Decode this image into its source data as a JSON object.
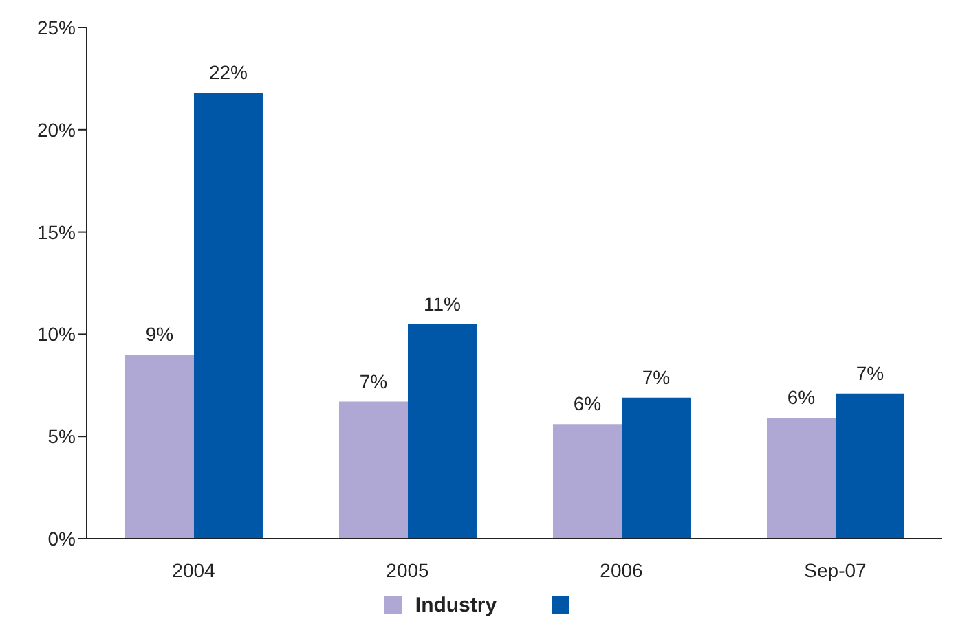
{
  "chart_data": {
    "type": "bar",
    "categories": [
      "2004",
      "2005",
      "2006",
      "Sep-07"
    ],
    "series": [
      {
        "name": "Industry",
        "color": "#b0a8d4",
        "values": [
          9.0,
          6.7,
          5.6,
          5.9
        ],
        "value_labels": [
          "9%",
          "7%",
          "6%",
          "6%"
        ]
      },
      {
        "color": "#0057a8",
        "values": [
          21.8,
          10.5,
          6.9,
          7.1
        ],
        "value_labels": [
          "22%",
          "11%",
          "7%",
          "7%"
        ]
      }
    ],
    "ylim": [
      0,
      25
    ],
    "yticks": [
      {
        "value": 0,
        "label": "0%"
      },
      {
        "value": 5,
        "label": "5%"
      },
      {
        "value": 10,
        "label": "10%"
      },
      {
        "value": 15,
        "label": "15%"
      },
      {
        "value": 20,
        "label": "20%"
      },
      {
        "value": 25,
        "label": "25%"
      }
    ],
    "grid": false,
    "legend": "bottom"
  }
}
